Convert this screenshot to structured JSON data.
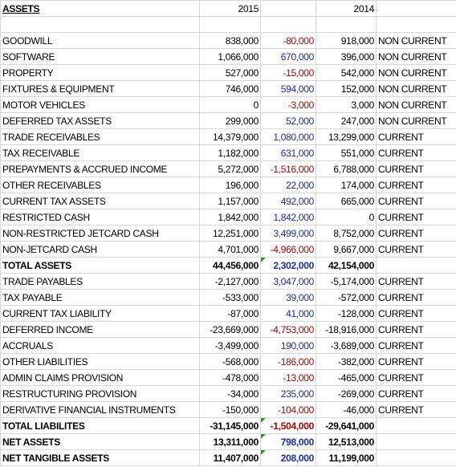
{
  "header": {
    "title": "ASSETS",
    "year_a": "2015",
    "year_b": "2014"
  },
  "change_colors": {
    "negative": "#b00000",
    "positive": "#1c2f9a"
  },
  "table": {
    "total_rows": [
      14,
      24,
      25,
      26
    ],
    "rows": [
      [
        "GOODWILL",
        "838,000",
        "-80,000",
        "918,000",
        "NON CURRENT"
      ],
      [
        "SOFTWARE",
        "1,066,000",
        "670,000",
        "396,000",
        "NON CURRENT"
      ],
      [
        "PROPERTY",
        "527,000",
        "-15,000",
        "542,000",
        "NON CURRENT"
      ],
      [
        "FIXTURES & EQUIPMENT",
        "746,000",
        "594,000",
        "152,000",
        "NON CURRENT"
      ],
      [
        "MOTOR VEHICLES",
        "0",
        "-3,000",
        "3,000",
        "NON CURRENT"
      ],
      [
        "DEFERRED TAX ASSETS",
        "299,000",
        "52,000",
        "247,000",
        "NON CURRENT"
      ],
      [
        "TRADE RECEIVABLES",
        "14,379,000",
        "1,080,000",
        "13,299,000",
        "CURRENT"
      ],
      [
        "TAX RECEIVABLE",
        "1,182,000",
        "631,000",
        "551,000",
        "CURRENT"
      ],
      [
        "PREPAYMENTS & ACCRUED INCOME",
        "5,272,000",
        "-1,516,000",
        "6,788,000",
        "CURRENT"
      ],
      [
        "OTHER RECEIVABLES",
        "196,000",
        "22,000",
        "174,000",
        "CURRENT"
      ],
      [
        "CURRENT TAX ASSETS",
        "1,157,000",
        "492,000",
        "665,000",
        "CURRENT"
      ],
      [
        "RESTRICTED CASH",
        "1,842,000",
        "1,842,000",
        "0",
        "CURRENT"
      ],
      [
        "NON-RESTRICTED JETCARD CASH",
        "12,251,000",
        "3,499,000",
        "8,752,000",
        "CURRENT"
      ],
      [
        "NON-JETCARD CASH",
        "4,701,000",
        "-4,966,000",
        "9,667,000",
        "CURRENT"
      ],
      [
        "TOTAL ASSETS",
        "44,456,000",
        "2,302,000",
        "42,154,000"
      ],
      [
        "TRADE PAYABLES",
        "-2,127,000",
        "3,047,000",
        "-5,174,000",
        "CURRENT"
      ],
      [
        "TAX PAYABLE",
        "-533,000",
        "39,000",
        "-572,000",
        "CURRENT"
      ],
      [
        "CURRENT TAX LIABILITY",
        "-87,000",
        "41,000",
        "-128,000",
        "CURRENT"
      ],
      [
        "DEFERRED INCOME",
        "-23,669,000",
        "-4,753,000",
        "-18,916,000",
        "CURRENT"
      ],
      [
        "ACCRUALS",
        "-3,499,000",
        "190,000",
        "-3,689,000",
        "CURRENT"
      ],
      [
        "OTHER LIABILITIES",
        "-568,000",
        "-186,000",
        "-382,000",
        "CURRENT"
      ],
      [
        "ADMIN CLAIMS PROVISION",
        "-478,000",
        "-13,000",
        "-465,000",
        "CURRENT"
      ],
      [
        "RESTRUCTURING PROVISION",
        "-34,000",
        "235,000",
        "-269,000",
        "CURRENT"
      ],
      [
        "DERIVATIVE FINANCIAL INSTRUMENTS",
        "-150,000",
        "-104,000",
        "-46,000",
        "CURRENT"
      ],
      [
        "TOTAL LIABILITES",
        "-31,145,000",
        "-1,504,000",
        "-29,641,000"
      ],
      [
        "NET ASSETS",
        "13,311,000",
        "798,000",
        "12,513,000"
      ],
      [
        "NET TANGIBLE ASSETS",
        "11,407,000",
        "208,000",
        "11,199,000"
      ]
    ]
  }
}
